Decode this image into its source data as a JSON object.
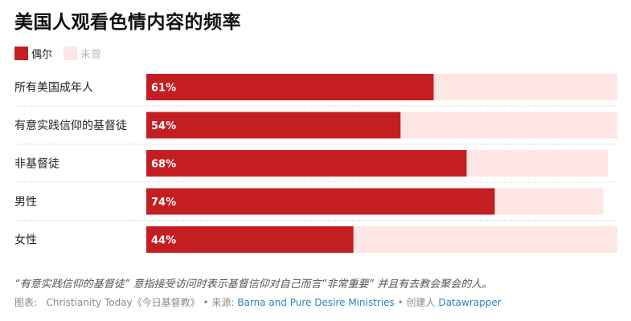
{
  "title": "美国人观看色情内容的频率",
  "legend": [
    {
      "label": "偶尔",
      "color": "#c41e22"
    },
    {
      "label": "未曾",
      "color": "#fde6e4"
    }
  ],
  "colors": {
    "primary": "#c41e22",
    "secondary": "#fde6e4",
    "separator": "#c8c8c8"
  },
  "chart_data": {
    "type": "bar",
    "orientation": "horizontal",
    "stacked": true,
    "categories": [
      "所有美国成年人",
      "有意实践信仰的基督徒",
      "非基督徒",
      "男性",
      "女性"
    ],
    "series": [
      {
        "name": "偶尔",
        "values": [
          61,
          54,
          68,
          74,
          44
        ]
      },
      {
        "name": "未曾",
        "values": [
          39,
          46,
          30,
          23,
          56
        ]
      }
    ],
    "value_labels": [
      "61%",
      "54%",
      "68%",
      "74%",
      "44%"
    ],
    "xlim": [
      0,
      100
    ],
    "legend_position": "top-left",
    "grid": false
  },
  "note": "“有意实践信仰的基督徒” 意指接受访问时表示基督信仰对自己而言“非常重要” 并且有去教会聚会的人。",
  "source": {
    "chart_by_label": "图表:",
    "chart_by": "Christianity Today《今日基督教》",
    "sep1": "• 来源:",
    "source_name": "Barna and Pure Desire Ministries",
    "sep2": "• 创建人",
    "tool": "Datawrapper"
  }
}
